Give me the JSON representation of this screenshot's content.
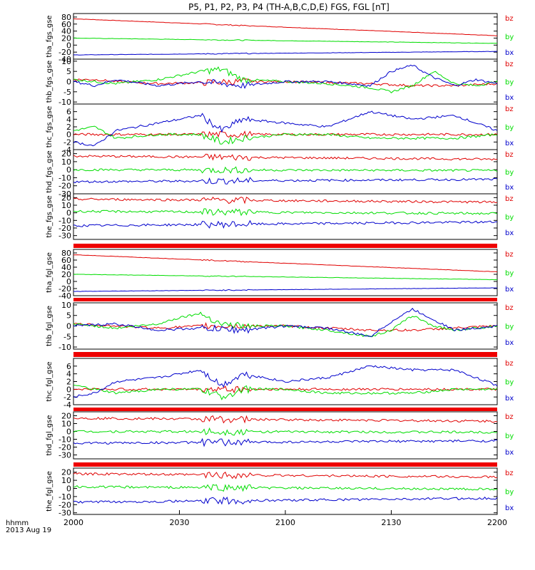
{
  "chart_data": {
    "type": "line",
    "title": "P5, P1, P2, P3, P4 (TH-A,B,C,D,E) FGS, FGL [nT]",
    "x_label": "hhmm",
    "date_label": "2013 Aug 19",
    "x_ticks": [
      "2000",
      "2030",
      "2100",
      "2130",
      "2200"
    ],
    "legend": [
      "bz",
      "by",
      "bx"
    ],
    "colors": {
      "bz": "#e00000",
      "by": "#00dd00",
      "bx": "#0000cc"
    },
    "panels": [
      {
        "ylabel": "tha_fgs_gse",
        "ylim": [
          -40,
          90
        ],
        "ticks": [
          "80",
          "60",
          "40",
          "20",
          "0",
          "-20",
          "-40"
        ],
        "series": [
          {
            "name": "bz",
            "x": [
              0,
              1
            ],
            "y": [
              75,
              27
            ]
          },
          {
            "name": "by",
            "x": [
              0,
              1
            ],
            "y": [
              20,
              5
            ]
          },
          {
            "name": "bx",
            "x": [
              0,
              1
            ],
            "y": [
              -28,
              -18
            ]
          }
        ]
      },
      {
        "ylabel": "thb_fgs_gse",
        "ylim": [
          -11,
          11
        ],
        "ticks": [
          "10",
          "5",
          "0",
          "-5",
          "-10"
        ],
        "series": [
          {
            "name": "bz",
            "x": [
              0,
              0.05,
              0.1,
              0.2,
              0.3,
              0.4,
              0.5,
              0.6,
              0.7,
              0.8,
              0.9,
              1
            ],
            "y": [
              1,
              1,
              0,
              -1,
              -0.5,
              0,
              0,
              -0.5,
              -1,
              -2,
              -2,
              -1
            ]
          },
          {
            "name": "by",
            "x": [
              0,
              0.05,
              0.1,
              0.2,
              0.25,
              0.3,
              0.35,
              0.4,
              0.5,
              0.6,
              0.65,
              0.7,
              0.75,
              0.8,
              0.85,
              0.9,
              0.95,
              1
            ],
            "y": [
              1,
              0,
              -1,
              1,
              3,
              5,
              6,
              1,
              0,
              -1,
              -2,
              -3,
              -5,
              -2,
              5,
              -1,
              -2,
              0
            ]
          },
          {
            "name": "bx",
            "x": [
              0,
              0.05,
              0.1,
              0.2,
              0.3,
              0.35,
              0.4,
              0.5,
              0.6,
              0.65,
              0.7,
              0.75,
              0.8,
              0.85,
              0.9,
              0.95,
              1
            ],
            "y": [
              0,
              -2,
              1,
              -2,
              0,
              -1,
              -2,
              0,
              0,
              -1,
              -2,
              5,
              8,
              2,
              -2,
              1,
              -1
            ]
          }
        ]
      },
      {
        "ylabel": "thc_fgs_gse",
        "ylim": [
          -4,
          8
        ],
        "ticks": [
          "6",
          "4",
          "2",
          "0",
          "-2",
          "-4"
        ],
        "series": [
          {
            "name": "bz",
            "x": [
              0,
              0.1,
              0.2,
              0.3,
              0.4,
              0.5,
              0.6,
              0.7,
              0.8,
              0.9,
              1
            ],
            "y": [
              0,
              0,
              0,
              0,
              0,
              0,
              0,
              0,
              0,
              0,
              0
            ]
          },
          {
            "name": "by",
            "x": [
              0,
              0.05,
              0.1,
              0.2,
              0.3,
              0.35,
              0.4,
              0.5,
              0.6,
              0.7,
              0.8,
              0.9,
              1
            ],
            "y": [
              1,
              2,
              -1,
              0,
              0,
              -2,
              -1,
              0,
              0,
              -1,
              -1,
              -1,
              0
            ]
          },
          {
            "name": "bx",
            "x": [
              0,
              0.05,
              0.1,
              0.15,
              0.2,
              0.3,
              0.35,
              0.4,
              0.5,
              0.6,
              0.7,
              0.8,
              0.9,
              1
            ],
            "y": [
              -2,
              -3,
              1,
              2,
              3,
              5,
              1,
              4,
              3,
              2,
              6,
              4,
              5,
              1
            ]
          }
        ]
      },
      {
        "ylabel": "thd_fgs_gse",
        "ylim": [
          -30,
          25
        ],
        "ticks": [
          "20",
          "10",
          "0",
          "-10",
          "-20",
          "-30"
        ],
        "series": [
          {
            "name": "bz",
            "x": [
              0,
              1
            ],
            "y": [
              17,
              13
            ]
          },
          {
            "name": "by",
            "x": [
              0,
              1
            ],
            "y": [
              0,
              -1
            ]
          },
          {
            "name": "bx",
            "x": [
              0,
              1
            ],
            "y": [
              -15,
              -12
            ]
          }
        ]
      },
      {
        "ylabel": "the_fgs_gse",
        "ylim": [
          -35,
          25
        ],
        "ticks": [
          "20",
          "10",
          "0",
          "-10",
          "-20",
          "-30"
        ],
        "series": [
          {
            "name": "bz",
            "x": [
              0,
              1
            ],
            "y": [
              18,
              14
            ]
          },
          {
            "name": "by",
            "x": [
              0,
              1
            ],
            "y": [
              2,
              -1
            ]
          },
          {
            "name": "bx",
            "x": [
              0,
              1
            ],
            "y": [
              -17,
              -12
            ]
          }
        ]
      },
      {
        "ylabel": "tha_fgl_gse",
        "ylim": [
          -40,
          90
        ],
        "ticks": [
          "80",
          "60",
          "40",
          "20",
          "0",
          "-20",
          "-40"
        ],
        "series": [
          {
            "name": "bz",
            "x": [
              0,
              1
            ],
            "y": [
              75,
              27
            ]
          },
          {
            "name": "by",
            "x": [
              0,
              1
            ],
            "y": [
              20,
              5
            ]
          },
          {
            "name": "bx",
            "x": [
              0,
              1
            ],
            "y": [
              -28,
              -18
            ]
          }
        ]
      },
      {
        "ylabel": "thb_fgl_gse",
        "ylim": [
          -11,
          11
        ],
        "ticks": [
          "10",
          "5",
          "0",
          "-5",
          "-10"
        ],
        "series": [
          {
            "name": "bz",
            "x": [
              0,
              0.1,
              0.2,
              0.3,
              0.4,
              0.5,
              0.6,
              0.7,
              0.8,
              0.9,
              1
            ],
            "y": [
              1,
              0,
              -1,
              0,
              0,
              0,
              -1,
              -2,
              -2,
              -1,
              0
            ]
          },
          {
            "name": "by",
            "x": [
              0,
              0.1,
              0.2,
              0.25,
              0.3,
              0.35,
              0.4,
              0.5,
              0.6,
              0.7,
              0.75,
              0.8,
              0.85,
              0.9,
              1
            ],
            "y": [
              1,
              -1,
              1,
              4,
              6,
              1,
              0,
              0,
              -2,
              -5,
              -2,
              5,
              0,
              -2,
              0
            ]
          },
          {
            "name": "bx",
            "x": [
              0,
              0.1,
              0.2,
              0.3,
              0.4,
              0.5,
              0.6,
              0.7,
              0.75,
              0.8,
              0.85,
              0.9,
              1
            ],
            "y": [
              0,
              1,
              -2,
              -1,
              -2,
              0,
              -1,
              -5,
              2,
              8,
              3,
              -2,
              0
            ]
          }
        ]
      },
      {
        "ylabel": "thc_fgl_gse",
        "ylim": [
          -4,
          8
        ],
        "ticks": [
          "6",
          "4",
          "2",
          "0",
          "-2",
          "-4"
        ],
        "series": [
          {
            "name": "bz",
            "x": [
              0,
              0.5,
              1
            ],
            "y": [
              0,
              0,
              0
            ]
          },
          {
            "name": "by",
            "x": [
              0,
              0.1,
              0.2,
              0.3,
              0.35,
              0.4,
              0.5,
              0.6,
              0.7,
              0.8,
              0.9,
              1
            ],
            "y": [
              1,
              -1,
              0,
              0,
              -2,
              0,
              0,
              -1,
              -1,
              -1,
              0,
              0
            ]
          },
          {
            "name": "bx",
            "x": [
              0,
              0.05,
              0.1,
              0.2,
              0.3,
              0.35,
              0.4,
              0.5,
              0.6,
              0.7,
              0.8,
              0.9,
              1
            ],
            "y": [
              -2,
              -1,
              2,
              3,
              5,
              1,
              4,
              2,
              3,
              6,
              5,
              5,
              1
            ]
          }
        ]
      },
      {
        "ylabel": "thd_fgl_gse",
        "ylim": [
          -35,
          25
        ],
        "ticks": [
          "20",
          "10",
          "0",
          "-10",
          "-20",
          "-30"
        ],
        "series": [
          {
            "name": "bz",
            "x": [
              0,
              1
            ],
            "y": [
              17,
              13
            ]
          },
          {
            "name": "by",
            "x": [
              0,
              1
            ],
            "y": [
              0,
              -1
            ]
          },
          {
            "name": "bx",
            "x": [
              0,
              1
            ],
            "y": [
              -15,
              -12
            ]
          }
        ]
      },
      {
        "ylabel": "the_fgl_gse",
        "ylim": [
          -32,
          25
        ],
        "ticks": [
          "20",
          "10",
          "0",
          "-10",
          "-20",
          "-30"
        ],
        "series": [
          {
            "name": "bz",
            "x": [
              0,
              1
            ],
            "y": [
              18,
              14
            ]
          },
          {
            "name": "by",
            "x": [
              0,
              1
            ],
            "y": [
              2,
              -1
            ]
          },
          {
            "name": "bx",
            "x": [
              0,
              1
            ],
            "y": [
              -17,
              -12
            ]
          }
        ]
      }
    ]
  }
}
